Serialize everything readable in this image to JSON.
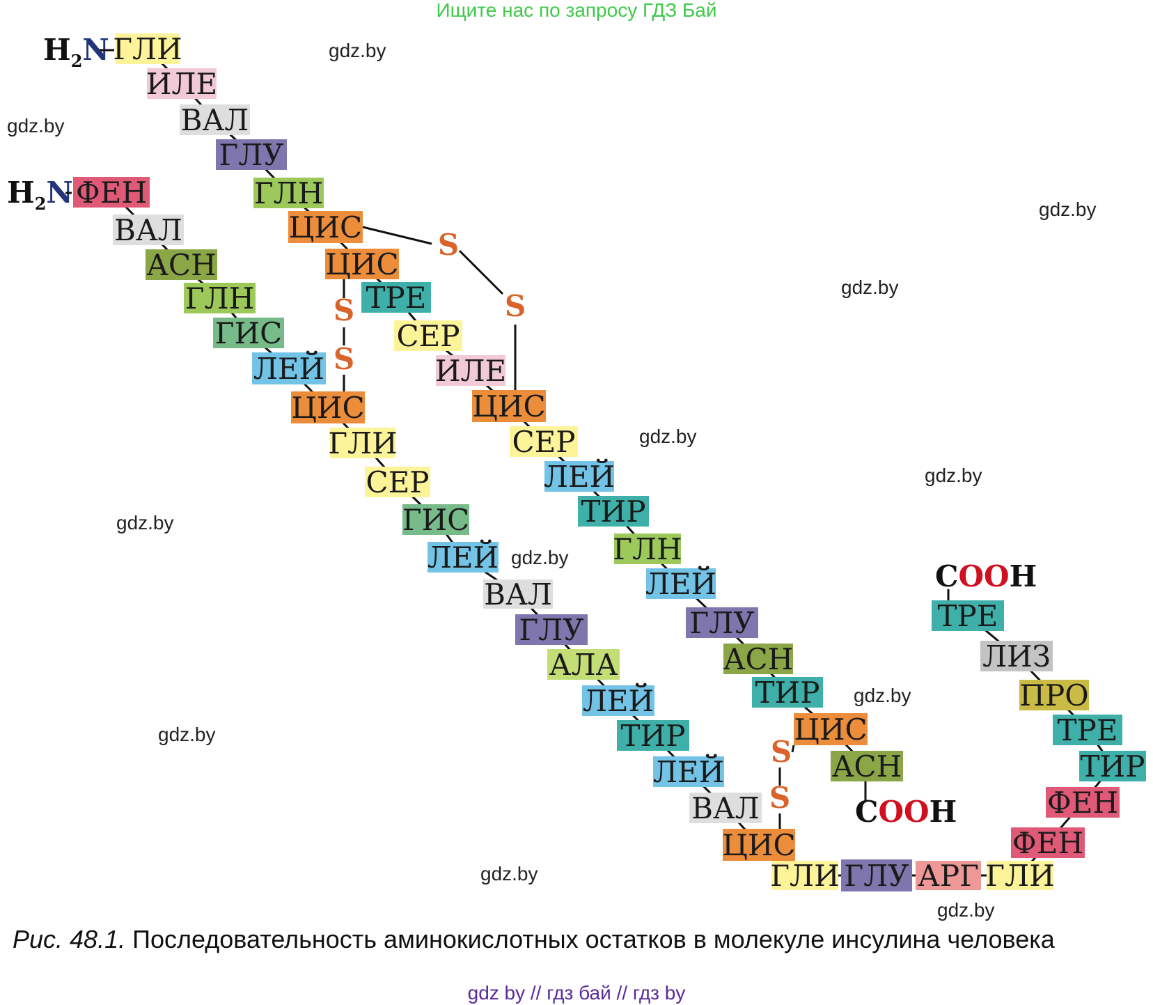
{
  "banner": "Ищите нас по запросу ГДЗ Бай",
  "watermark": "gdz.by",
  "caption": {
    "figure_label": "Рис. 48.1.",
    "text": "Последовательность аминокислотных остатков в молекуле инсулина человека"
  },
  "footer": "gdz by  //  гдз бай  //  гдз by",
  "colors": {
    "ГЛИ": "#fdf49a",
    "ИЛЕ": "#f2c9d6",
    "ВАЛ": "#dedede",
    "ГЛУ": "#7e76ad",
    "ГЛН": "#9cc95a",
    "ЦИС": "#ec8d3c",
    "ТРЕ": "#3fb0a9",
    "СЕР": "#fdf49a",
    "ТИР": "#3fb0a9",
    "ЛЕЙ": "#72c3e6",
    "АСН": "#8aa647",
    "ФЕН": "#e05a78",
    "ГИС": "#78bb8a",
    "АЛА": "#c3de74",
    "ЛИЗ": "#c3c3c3",
    "ПРО": "#c9bb46",
    "АРГ": "#ef9898"
  },
  "chain_a": {
    "n_terminus": {
      "h": "H",
      "sub": "2",
      "n": "N",
      "bond": "–"
    },
    "residues": [
      "ГЛИ",
      "ИЛЕ",
      "ВАЛ",
      "ГЛУ",
      "ГЛН",
      "ЦИС",
      "ЦИС",
      "ТРЕ",
      "СЕР",
      "ИЛЕ",
      "ЦИС",
      "СЕР",
      "ЛЕЙ",
      "ТИР",
      "ГЛН",
      "ЛЕЙ",
      "ГЛУ",
      "АСН",
      "ТИР",
      "ЦИС",
      "АСН"
    ],
    "c_terminus": {
      "c": "C",
      "o": "OO",
      "h": "H"
    }
  },
  "chain_b": {
    "n_terminus": {
      "h": "H",
      "sub": "2",
      "n": "N",
      "bond": "-"
    },
    "residues": [
      "ФЕН",
      "ВАЛ",
      "АСН",
      "ГЛН",
      "ГИС",
      "ЛЕЙ",
      "ЦИС",
      "ГЛИ",
      "СЕР",
      "ГИС",
      "ЛЕЙ",
      "ВАЛ",
      "ГЛУ",
      "АЛА",
      "ЛЕЙ",
      "ТИР",
      "ЛЕЙ",
      "ВАЛ",
      "ЦИС",
      "ГЛИ",
      "ГЛУ",
      "АРГ",
      "ГЛИ",
      "ФЕН",
      "ФЕН",
      "ТИР",
      "ТРЕ",
      "ПРО",
      "ЛИЗ",
      "ТРЕ"
    ],
    "c_terminus": {
      "c": "C",
      "o": "OO",
      "h": "H"
    }
  },
  "disulfide_bridges": [
    {
      "from_chain": "a",
      "from_index": 5,
      "to_chain": "a",
      "to_index": 10,
      "atom1": "S",
      "atom2": "S"
    },
    {
      "from_chain": "a",
      "from_index": 6,
      "to_chain": "b",
      "to_index": 6,
      "atom1": "S",
      "atom2": "S"
    },
    {
      "from_chain": "a",
      "from_index": 19,
      "to_chain": "b",
      "to_index": 18,
      "atom1": "S",
      "atom2": "S"
    }
  ]
}
